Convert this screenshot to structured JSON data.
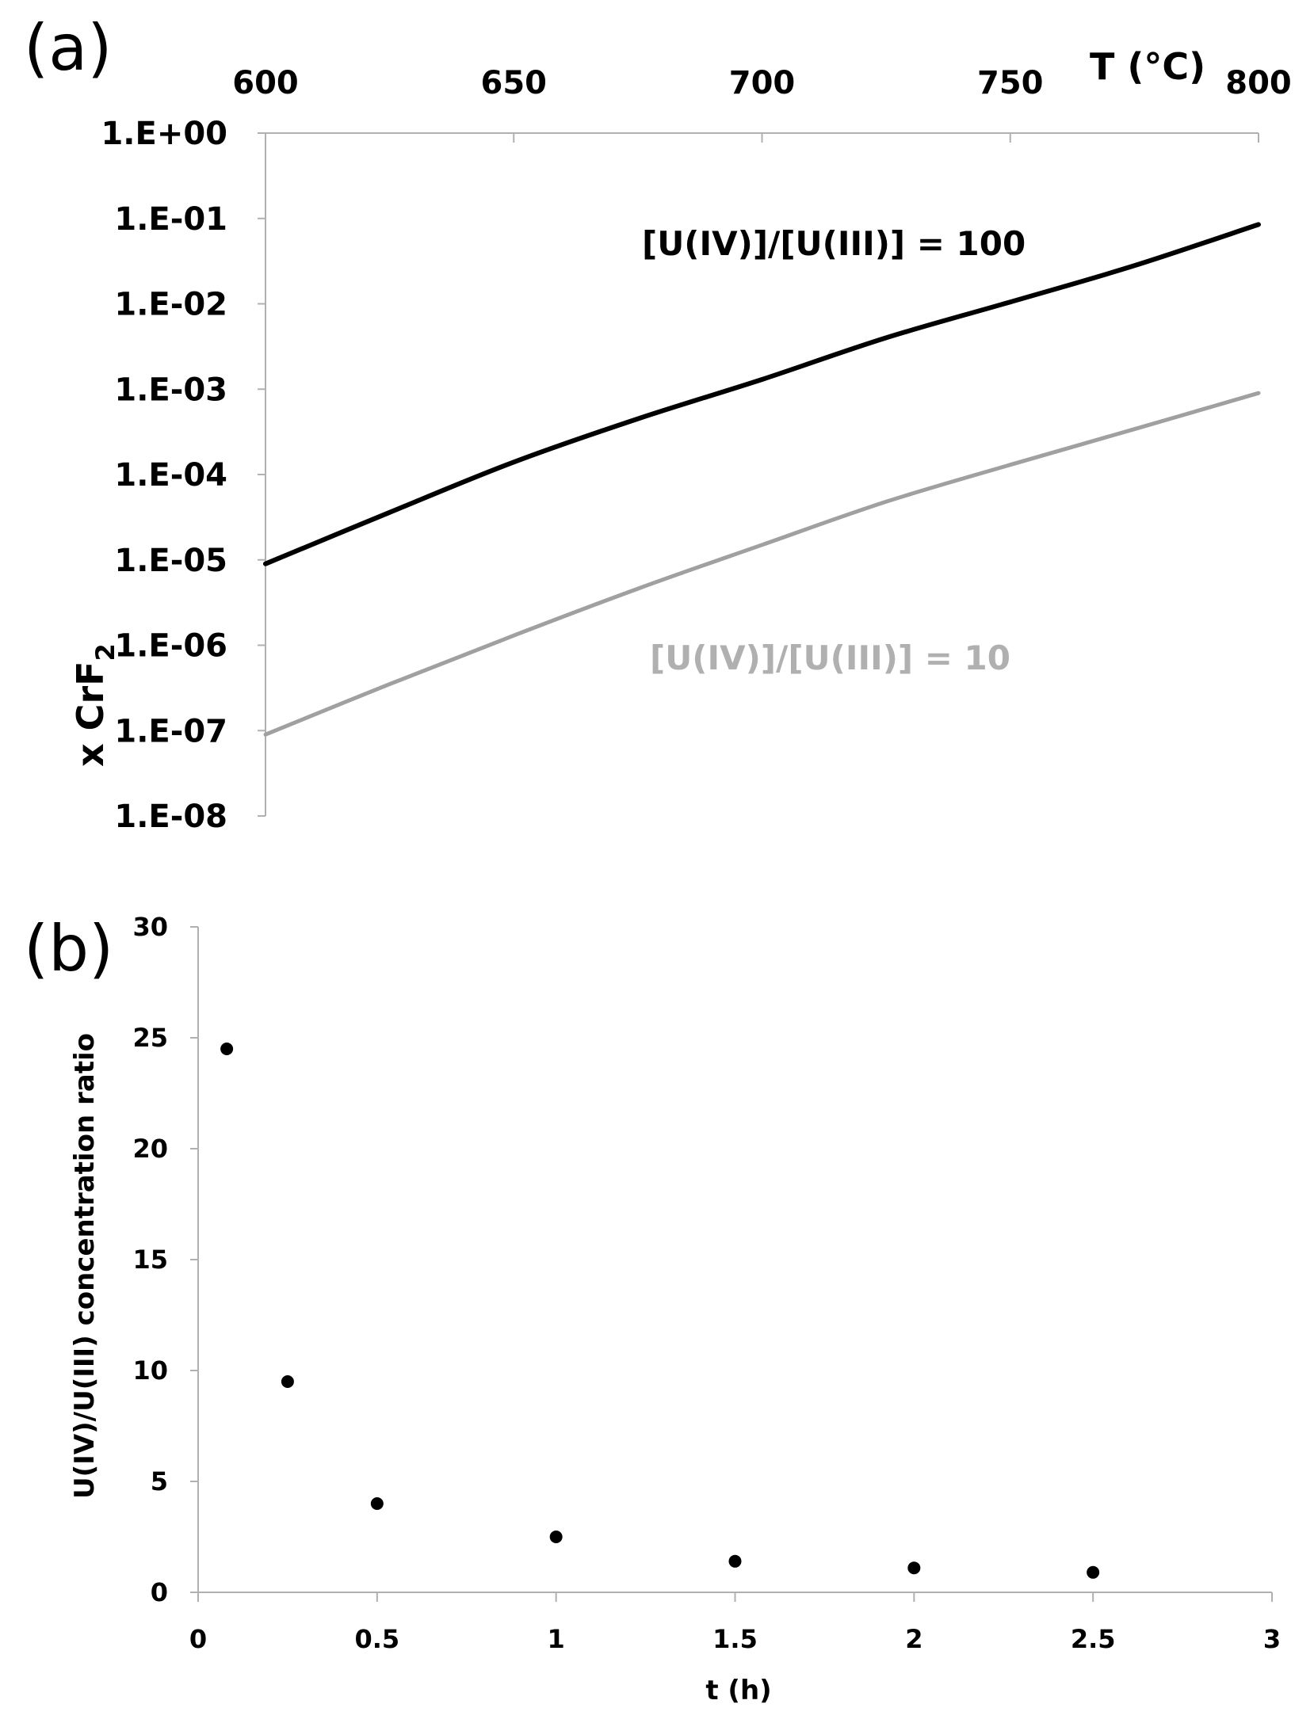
{
  "panels": {
    "a": "(a)",
    "b": "(b)"
  },
  "chart_data": [
    {
      "type": "line",
      "xlabel": "T (°C)",
      "ylabel": "x CrF",
      "ylabel_sub": "2",
      "x_axis_position": "top",
      "y_scale": "log",
      "xlim": [
        600,
        800
      ],
      "ylim": [
        1e-08,
        1
      ],
      "x_ticks": [
        "600",
        "650",
        "700",
        "750",
        "800"
      ],
      "x_tick_values": [
        600,
        650,
        700,
        750,
        800
      ],
      "y_ticks": [
        "1.E+00",
        "1.E-01",
        "1.E-02",
        "1.E-03",
        "1.E-04",
        "1.E-05",
        "1.E-06",
        "1.E-07",
        "1.E-08"
      ],
      "y_tick_exponents": [
        0,
        -1,
        -2,
        -3,
        -4,
        -5,
        -6,
        -7,
        -8
      ],
      "grid": false,
      "series": [
        {
          "name": "[U(IV)]/[U(III)] = 100",
          "color": "#000000",
          "x": [
            600,
            625,
            650,
            675,
            700,
            725,
            750,
            775,
            800
          ],
          "y": [
            9e-06,
            3.6e-05,
            0.00014,
            0.00045,
            0.0013,
            0.004,
            0.0105,
            0.028,
            0.085
          ]
        },
        {
          "name": "[U(IV)]/[U(III)] = 10",
          "color": "#a0a0a0",
          "x": [
            600,
            625,
            650,
            675,
            700,
            725,
            750,
            775,
            800
          ],
          "y": [
            9e-08,
            3.5e-07,
            1.3e-06,
            4.6e-06,
            1.5e-05,
            4.8e-05,
            0.00013,
            0.00034,
            0.0009
          ]
        }
      ]
    },
    {
      "type": "scatter",
      "xlabel": "t (h)",
      "ylabel": "U(IV)/U(III) concentration ratio",
      "xlim": [
        0,
        3
      ],
      "ylim": [
        0,
        30
      ],
      "x_ticks": [
        "0",
        "0.5",
        "1",
        "1.5",
        "2",
        "2.5",
        "3"
      ],
      "x_tick_values": [
        0,
        0.5,
        1,
        1.5,
        2,
        2.5,
        3
      ],
      "y_ticks": [
        "0",
        "5",
        "10",
        "15",
        "20",
        "25",
        "30"
      ],
      "y_tick_values": [
        0,
        5,
        10,
        15,
        20,
        25,
        30
      ],
      "grid": false,
      "series": [
        {
          "color": "#000000",
          "x": [
            0.08,
            0.25,
            0.5,
            1.0,
            1.5,
            2.0,
            2.5
          ],
          "y": [
            24.5,
            9.5,
            4.0,
            2.5,
            1.4,
            1.1,
            0.9
          ]
        }
      ]
    }
  ]
}
